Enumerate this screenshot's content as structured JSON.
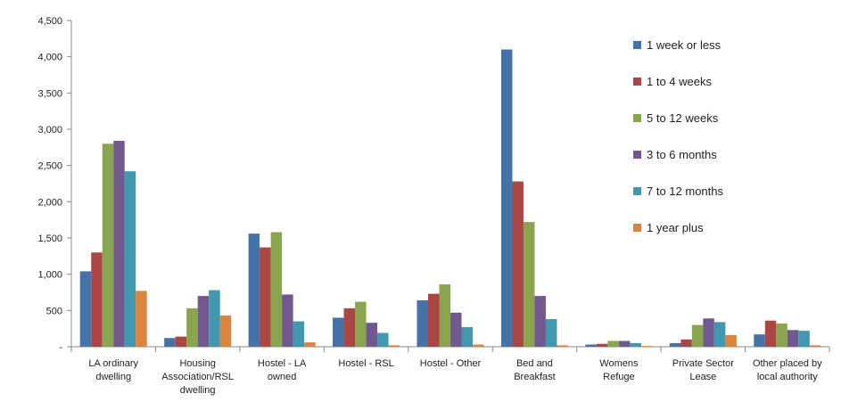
{
  "chart_data": {
    "type": "bar",
    "categories": [
      [
        "LA ordinary",
        "dwelling"
      ],
      [
        "Housing",
        "Association/RSL",
        "dwelling"
      ],
      [
        "Hostel - LA",
        "owned"
      ],
      [
        "Hostel - RSL"
      ],
      [
        "Hostel - Other"
      ],
      [
        "Bed and",
        "Breakfast"
      ],
      [
        "Womens",
        "Refuge"
      ],
      [
        "Private Sector",
        "Lease"
      ],
      [
        "Other placed by",
        "local authority"
      ]
    ],
    "series": [
      {
        "name": "1 week or less",
        "color": "#4572A7",
        "values": [
          1040,
          120,
          1560,
          400,
          640,
          4100,
          30,
          50,
          170
        ]
      },
      {
        "name": "1 to 4 weeks",
        "color": "#AA4643",
        "values": [
          1300,
          140,
          1370,
          530,
          730,
          2280,
          40,
          100,
          360
        ]
      },
      {
        "name": "5 to 12 weeks",
        "color": "#89A54E",
        "values": [
          2800,
          530,
          1580,
          620,
          860,
          1720,
          80,
          300,
          320
        ]
      },
      {
        "name": "3 to 6 months",
        "color": "#71588F",
        "values": [
          2840,
          700,
          720,
          330,
          470,
          700,
          80,
          390,
          230
        ]
      },
      {
        "name": "7 to 12 months",
        "color": "#4198AF",
        "values": [
          2420,
          780,
          350,
          190,
          270,
          380,
          50,
          340,
          220
        ]
      },
      {
        "name": "1 year plus",
        "color": "#DB843D",
        "values": [
          770,
          430,
          60,
          20,
          30,
          20,
          10,
          160,
          20
        ]
      }
    ],
    "yticks": [
      "-",
      "500",
      "1,000",
      "1,500",
      "2,000",
      "2,500",
      "3,000",
      "3,500",
      "4,000",
      "4,500"
    ],
    "ylim": [
      0,
      4500
    ],
    "grid": false,
    "legend_position": "right"
  }
}
